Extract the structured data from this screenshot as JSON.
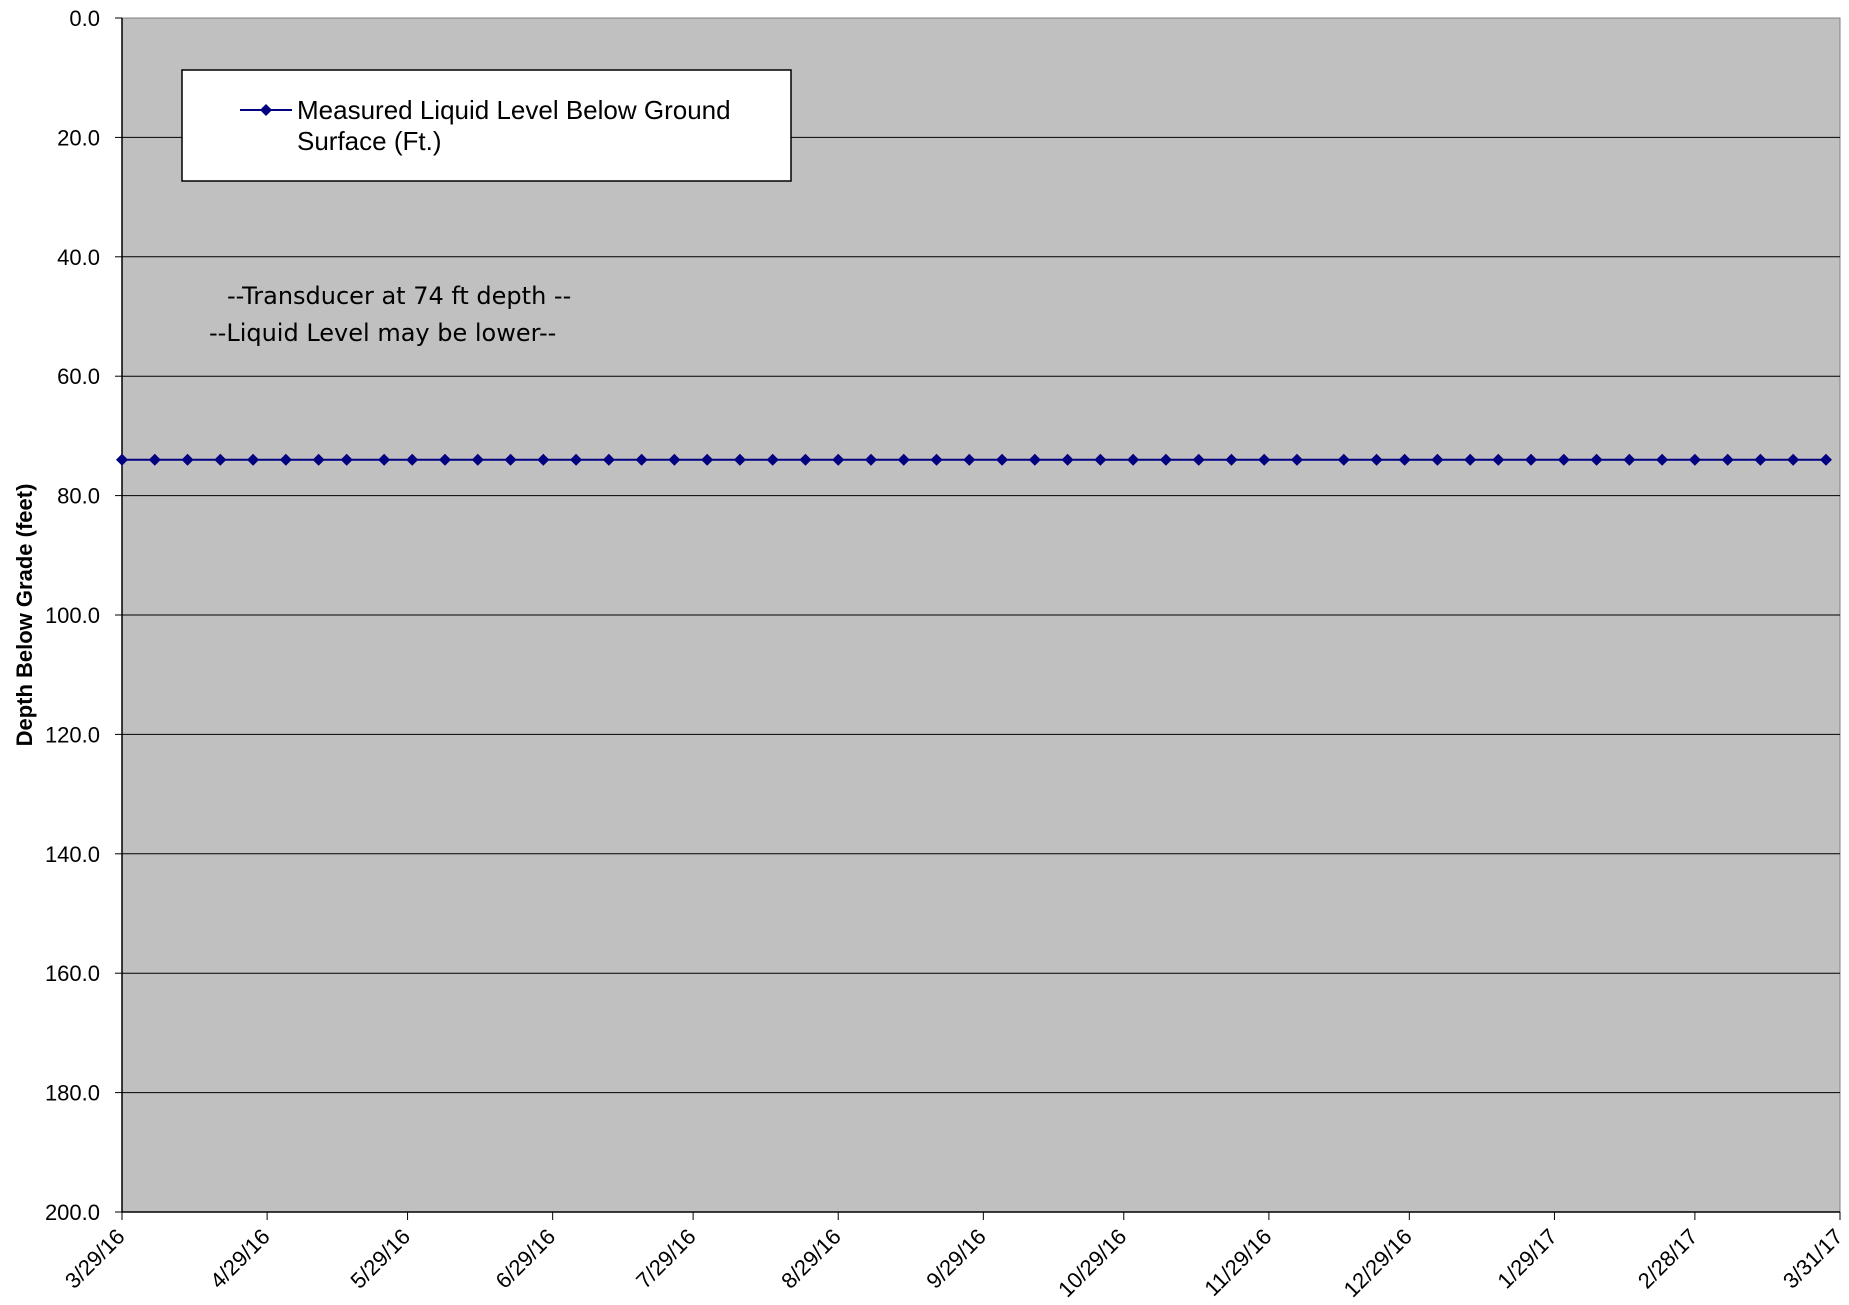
{
  "chart_data": {
    "type": "line",
    "ylabel": "Depth Below Grade (feet)",
    "xlabel": "",
    "title": "",
    "ylim": [
      0,
      200
    ],
    "y_inverted": true,
    "y_ticks": [
      "0.0",
      "20.0",
      "40.0",
      "60.0",
      "80.0",
      "100.0",
      "120.0",
      "140.0",
      "160.0",
      "180.0",
      "200.0"
    ],
    "x_ticks": [
      "3/29/16",
      "4/29/16",
      "5/29/16",
      "6/29/16",
      "7/29/16",
      "8/29/16",
      "9/29/16",
      "10/29/16",
      "11/29/16",
      "12/29/16",
      "1/29/17",
      "2/28/17",
      "3/31/17"
    ],
    "xlim": [
      "2016-03-29",
      "2017-03-31"
    ],
    "grid": "horizontal",
    "plot_background": "#c0c0c0",
    "legend_placement": "top-left",
    "series": [
      {
        "name": "Measured Liquid Level Below Ground Surface (Ft.)",
        "color": "#000080",
        "marker": "diamond",
        "x": [
          "2016-03-29",
          "2016-04-05",
          "2016-04-12",
          "2016-04-19",
          "2016-04-26",
          "2016-05-03",
          "2016-05-10",
          "2016-05-16",
          "2016-05-24",
          "2016-05-30",
          "2016-06-06",
          "2016-06-13",
          "2016-06-20",
          "2016-06-27",
          "2016-07-04",
          "2016-07-11",
          "2016-07-18",
          "2016-07-25",
          "2016-08-01",
          "2016-08-08",
          "2016-08-15",
          "2016-08-22",
          "2016-08-29",
          "2016-09-05",
          "2016-09-12",
          "2016-09-19",
          "2016-09-26",
          "2016-10-03",
          "2016-10-10",
          "2016-10-17",
          "2016-10-24",
          "2016-10-31",
          "2016-11-07",
          "2016-11-14",
          "2016-11-21",
          "2016-11-28",
          "2016-12-05",
          "2016-12-15",
          "2016-12-22",
          "2016-12-28",
          "2017-01-04",
          "2017-01-11",
          "2017-01-17",
          "2017-01-24",
          "2017-01-31",
          "2017-02-07",
          "2017-02-14",
          "2017-02-21",
          "2017-02-28",
          "2017-03-07",
          "2017-03-14",
          "2017-03-21",
          "2017-03-28"
        ],
        "values": [
          74,
          74,
          74,
          74,
          74,
          74,
          74,
          74,
          74,
          74,
          74,
          74,
          74,
          74,
          74,
          74,
          74,
          74,
          74,
          74,
          74,
          74,
          74,
          74,
          74,
          74,
          74,
          74,
          74,
          74,
          74,
          74,
          74,
          74,
          74,
          74,
          74,
          74,
          74,
          74,
          74,
          74,
          74,
          74,
          74,
          74,
          74,
          74,
          74,
          74,
          74,
          74,
          74
        ]
      }
    ],
    "legend": {
      "entry_line1": "Measured Liquid Level Below Ground",
      "entry_line2": "Surface (Ft.)"
    },
    "annotations": [
      "--Transducer at 74 ft depth --",
      "--Liquid Level may be lower--"
    ]
  }
}
